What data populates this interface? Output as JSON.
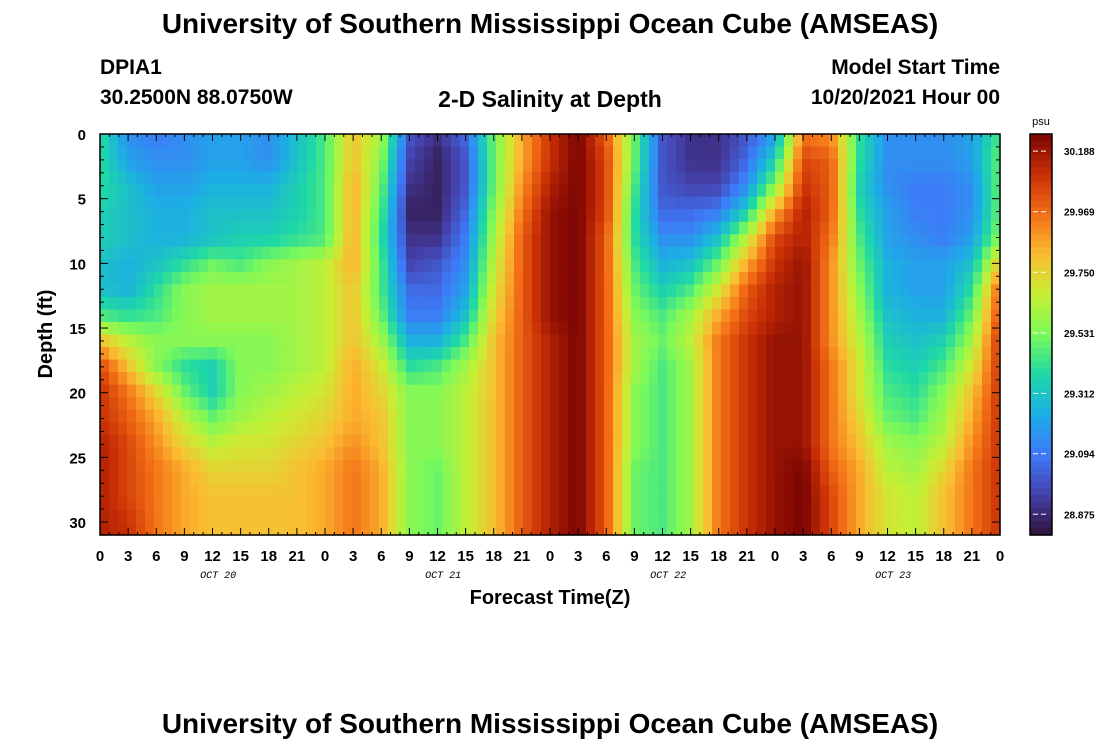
{
  "page": {
    "title": "University of Southern Mississippi Ocean Cube (AMSEAS)",
    "footer_title": "University of Southern Mississippi Ocean Cube (AMSEAS)",
    "station": "DPIA1",
    "coords": "30.2500N  88.0750W",
    "subtitle": "2-D Salinity at Depth",
    "model_start_label": "Model Start Time",
    "model_start_value": "10/20/2021 Hour 00"
  },
  "chart_data": {
    "type": "heatmap",
    "title": "2-D Salinity at Depth",
    "xlabel": "Forecast Time(Z)",
    "ylabel": "Depth (ft)",
    "x_range_hours": [
      0,
      96
    ],
    "y_range_ft": [
      0,
      31
    ],
    "y_inverted": true,
    "x_tick_labels": [
      "0",
      "3",
      "6",
      "9",
      "12",
      "15",
      "18",
      "21",
      "0",
      "3",
      "6",
      "9",
      "12",
      "15",
      "18",
      "21",
      "0",
      "3",
      "6",
      "9",
      "12",
      "15",
      "18",
      "21",
      "0",
      "3",
      "6",
      "9",
      "12",
      "15",
      "18",
      "21",
      "0"
    ],
    "y_tick_labels": [
      "0",
      "5",
      "10",
      "15",
      "20",
      "25",
      "30"
    ],
    "y_ticks": [
      0,
      5,
      10,
      15,
      20,
      25,
      30
    ],
    "day_labels": [
      "OCT 20",
      "OCT 21",
      "OCT 22",
      "OCT 23"
    ],
    "colorbar": {
      "unit": "psu",
      "min": 28.8,
      "max": 30.25,
      "tick_labels": [
        "30.188",
        "29.969",
        "29.750",
        "29.531",
        "29.312",
        "29.094",
        "28.875"
      ]
    },
    "time_hours": [
      0,
      3,
      6,
      9,
      12,
      15,
      18,
      21,
      24,
      27,
      30,
      33,
      36,
      39,
      42,
      45,
      48,
      51,
      54,
      57,
      60,
      63,
      66,
      69,
      72,
      75,
      78,
      81,
      84,
      87,
      90,
      93,
      96
    ],
    "depth_ft": [
      0,
      2,
      4,
      6,
      8,
      10,
      12,
      14,
      16,
      18,
      20,
      22,
      24,
      26,
      28,
      30,
      31
    ],
    "salinity_psu_grid": [
      [
        29.4,
        29.15,
        29.1,
        29.15,
        29.2,
        29.2,
        29.15,
        29.3,
        29.45,
        29.8,
        29.6,
        29.0,
        28.9,
        29.05,
        29.5,
        29.85,
        30.1,
        30.25,
        30.0,
        29.5,
        29.0,
        28.9,
        28.9,
        29.0,
        29.2,
        29.95,
        29.9,
        29.4,
        29.15,
        29.15,
        29.15,
        29.2,
        29.45
      ],
      [
        29.4,
        29.2,
        29.15,
        29.15,
        29.2,
        29.2,
        29.15,
        29.3,
        29.45,
        29.8,
        29.55,
        28.95,
        28.85,
        29.0,
        29.5,
        29.85,
        30.1,
        30.25,
        30.05,
        29.5,
        29.0,
        28.9,
        28.9,
        29.05,
        29.35,
        30.05,
        30.0,
        29.4,
        29.15,
        29.15,
        29.15,
        29.2,
        29.5
      ],
      [
        29.4,
        29.3,
        29.2,
        29.2,
        29.25,
        29.25,
        29.25,
        29.35,
        29.45,
        29.85,
        29.5,
        28.9,
        28.85,
        29.0,
        29.5,
        29.9,
        30.15,
        30.25,
        30.05,
        29.45,
        29.0,
        28.95,
        28.95,
        29.15,
        29.55,
        30.1,
        30.0,
        29.35,
        29.15,
        29.1,
        29.1,
        29.15,
        29.5
      ],
      [
        29.35,
        29.3,
        29.25,
        29.25,
        29.3,
        29.3,
        29.3,
        29.35,
        29.45,
        29.85,
        29.45,
        28.85,
        28.85,
        29.05,
        29.55,
        29.95,
        30.2,
        30.25,
        30.05,
        29.4,
        29.05,
        29.05,
        29.1,
        29.35,
        29.85,
        30.15,
        30.0,
        29.4,
        29.2,
        29.1,
        29.1,
        29.15,
        29.5
      ],
      [
        29.35,
        29.3,
        29.25,
        29.25,
        29.3,
        29.35,
        29.35,
        29.4,
        29.45,
        29.85,
        29.4,
        28.9,
        28.9,
        29.1,
        29.6,
        30.0,
        30.2,
        30.25,
        30.0,
        29.4,
        29.15,
        29.15,
        29.3,
        29.65,
        30.05,
        30.15,
        29.95,
        29.45,
        29.2,
        29.15,
        29.1,
        29.2,
        29.55
      ],
      [
        29.3,
        29.25,
        29.3,
        29.4,
        29.5,
        29.45,
        29.55,
        29.6,
        29.65,
        29.85,
        29.45,
        28.95,
        29.0,
        29.15,
        29.65,
        30.0,
        30.2,
        30.25,
        30.0,
        29.45,
        29.25,
        29.3,
        29.5,
        29.85,
        30.1,
        30.2,
        29.9,
        29.5,
        29.25,
        29.2,
        29.2,
        29.3,
        29.8
      ],
      [
        29.3,
        29.25,
        29.4,
        29.55,
        29.6,
        29.6,
        29.6,
        29.6,
        29.65,
        29.8,
        29.45,
        29.05,
        29.05,
        29.2,
        29.7,
        30.0,
        30.2,
        30.25,
        30.0,
        29.5,
        29.35,
        29.45,
        29.7,
        30.0,
        30.15,
        30.2,
        29.9,
        29.55,
        29.25,
        29.2,
        29.2,
        29.4,
        30.0
      ],
      [
        29.45,
        29.4,
        29.45,
        29.55,
        29.6,
        29.6,
        29.6,
        29.6,
        29.65,
        29.8,
        29.5,
        29.1,
        29.1,
        29.3,
        29.75,
        30.0,
        30.2,
        30.25,
        30.0,
        29.55,
        29.45,
        29.6,
        29.85,
        30.05,
        30.15,
        30.2,
        29.9,
        29.6,
        29.3,
        29.25,
        29.25,
        29.5,
        30.05
      ],
      [
        29.8,
        29.65,
        29.55,
        29.55,
        29.55,
        29.55,
        29.55,
        29.6,
        29.65,
        29.8,
        29.6,
        29.25,
        29.25,
        29.45,
        29.8,
        30.0,
        30.15,
        30.25,
        30.0,
        29.6,
        29.5,
        29.65,
        29.95,
        30.1,
        30.2,
        30.2,
        29.9,
        29.65,
        29.35,
        29.3,
        29.35,
        29.6,
        30.1
      ],
      [
        30.05,
        29.8,
        29.55,
        29.4,
        29.35,
        29.55,
        29.55,
        29.6,
        29.65,
        29.85,
        29.7,
        29.4,
        29.45,
        29.6,
        29.8,
        30.0,
        30.15,
        30.25,
        30.0,
        29.6,
        29.45,
        29.6,
        29.95,
        30.1,
        30.2,
        30.2,
        29.95,
        29.7,
        29.4,
        29.35,
        29.45,
        29.7,
        30.1
      ],
      [
        30.1,
        29.95,
        29.75,
        29.5,
        29.35,
        29.55,
        29.6,
        29.65,
        29.7,
        29.85,
        29.75,
        29.55,
        29.55,
        29.65,
        29.8,
        30.0,
        30.15,
        30.25,
        30.0,
        29.55,
        29.45,
        29.6,
        29.95,
        30.1,
        30.2,
        30.2,
        29.95,
        29.7,
        29.45,
        29.4,
        29.55,
        29.8,
        30.1
      ],
      [
        30.1,
        30.0,
        29.85,
        29.65,
        29.5,
        29.6,
        29.65,
        29.7,
        29.75,
        29.85,
        29.8,
        29.55,
        29.55,
        29.65,
        29.8,
        30.0,
        30.15,
        30.25,
        30.0,
        29.55,
        29.45,
        29.6,
        29.95,
        30.1,
        30.2,
        30.2,
        29.95,
        29.75,
        29.5,
        29.45,
        29.6,
        29.85,
        30.1
      ],
      [
        30.15,
        30.05,
        29.9,
        29.75,
        29.65,
        29.7,
        29.7,
        29.75,
        29.8,
        29.9,
        29.8,
        29.55,
        29.55,
        29.65,
        29.8,
        30.0,
        30.15,
        30.25,
        30.0,
        29.55,
        29.45,
        29.6,
        29.95,
        30.1,
        30.2,
        30.2,
        29.95,
        29.8,
        29.6,
        29.55,
        29.65,
        29.9,
        30.1
      ],
      [
        30.15,
        30.05,
        29.95,
        29.85,
        29.75,
        29.75,
        29.75,
        29.8,
        29.85,
        29.95,
        29.85,
        29.55,
        29.5,
        29.65,
        29.8,
        30.0,
        30.15,
        30.25,
        30.0,
        29.5,
        29.45,
        29.6,
        29.95,
        30.1,
        30.2,
        30.25,
        30.0,
        29.85,
        29.65,
        29.6,
        29.75,
        29.95,
        30.1
      ],
      [
        30.15,
        30.05,
        29.95,
        29.85,
        29.8,
        29.8,
        29.8,
        29.8,
        29.85,
        29.95,
        29.85,
        29.55,
        29.5,
        29.65,
        29.8,
        30.0,
        30.15,
        30.25,
        30.0,
        29.5,
        29.45,
        29.6,
        29.95,
        30.1,
        30.2,
        30.25,
        30.05,
        29.85,
        29.7,
        29.65,
        29.8,
        29.95,
        30.1
      ],
      [
        30.15,
        30.1,
        29.95,
        29.85,
        29.8,
        29.8,
        29.8,
        29.8,
        29.85,
        29.95,
        29.85,
        29.55,
        29.5,
        29.65,
        29.8,
        30.0,
        30.15,
        30.25,
        30.0,
        29.5,
        29.45,
        29.6,
        29.95,
        30.1,
        30.2,
        30.25,
        30.05,
        29.85,
        29.7,
        29.65,
        29.8,
        29.95,
        30.1
      ],
      [
        30.15,
        30.1,
        29.95,
        29.85,
        29.8,
        29.8,
        29.8,
        29.8,
        29.85,
        29.95,
        29.85,
        29.55,
        29.5,
        29.65,
        29.8,
        30.0,
        30.15,
        30.25,
        30.0,
        29.5,
        29.45,
        29.6,
        29.95,
        30.1,
        30.2,
        30.25,
        30.05,
        29.85,
        29.7,
        29.65,
        29.8,
        29.95,
        30.1
      ]
    ]
  }
}
